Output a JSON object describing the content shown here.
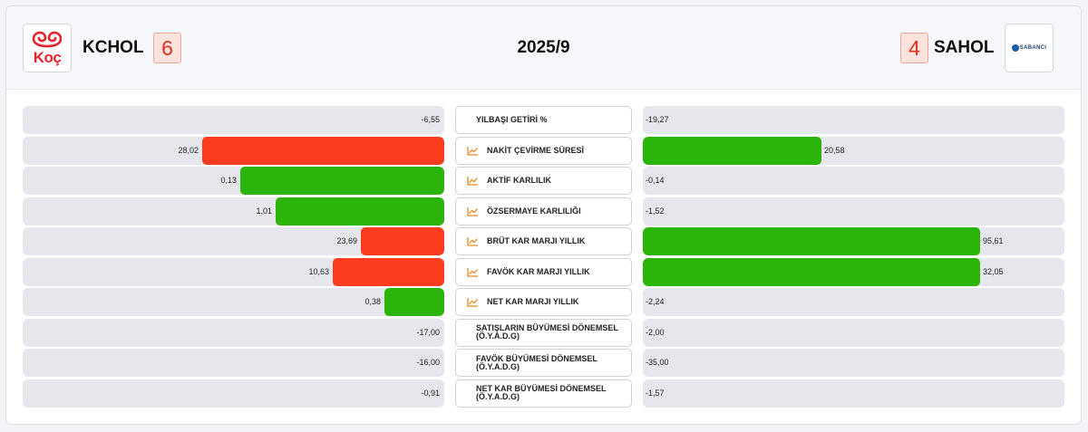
{
  "header": {
    "left": {
      "logo_text": "Koç",
      "ticker": "KCHOL",
      "score": "6"
    },
    "right": {
      "logo_text": "SABANCI",
      "ticker": "SAHOL",
      "score": "4"
    },
    "period": "2025/9"
  },
  "colors": {
    "good": "#2bb40a",
    "bad": "#fc3c1f",
    "track": "#e6e7ec"
  },
  "metrics": [
    {
      "label": "YILBAŞI GETİRİ %",
      "icon": "",
      "left": {
        "value": "-6,55",
        "fill": 0,
        "color": ""
      },
      "right": {
        "value": "-19,27",
        "fill": 0,
        "color": ""
      }
    },
    {
      "label": "NAKİT ÇEVİRME SÜRESİ",
      "icon": "chart-line-icon",
      "left": {
        "value": "28,02",
        "fill": 0.575,
        "color": "bad"
      },
      "right": {
        "value": "20,58",
        "fill": 0.423,
        "color": "good"
      }
    },
    {
      "label": "AKTİF KARLILIK",
      "icon": "chart-line-icon",
      "left": {
        "value": "0,13",
        "fill": 0.483,
        "color": "good"
      },
      "right": {
        "value": "-0,14",
        "fill": 0,
        "color": ""
      }
    },
    {
      "label": "ÖZSERMAYE KARLILIĞI",
      "icon": "chart-line-icon",
      "left": {
        "value": "1,01",
        "fill": 0.4,
        "color": "good"
      },
      "right": {
        "value": "-1,52",
        "fill": 0,
        "color": ""
      }
    },
    {
      "label": "BRÜT KAR MARJI YILLIK",
      "icon": "chart-line-icon",
      "left": {
        "value": "23,69",
        "fill": 0.198,
        "color": "bad"
      },
      "right": {
        "value": "95,61",
        "fill": 0.8,
        "color": "good"
      }
    },
    {
      "label": "FAVÖK KAR MARJI YILLIK",
      "icon": "chart-line-icon",
      "left": {
        "value": "10,63",
        "fill": 0.265,
        "color": "bad"
      },
      "right": {
        "value": "32,05",
        "fill": 0.8,
        "color": "good"
      }
    },
    {
      "label": "NET KAR MARJI YILLIK",
      "icon": "chart-line-icon",
      "left": {
        "value": "0,38",
        "fill": 0.143,
        "color": "good"
      },
      "right": {
        "value": "-2,24",
        "fill": 0,
        "color": ""
      }
    },
    {
      "label": "SATIŞLARIN BÜYÜMESİ DÖNEMSEL (Ö.Y.A.D.G)",
      "icon": "",
      "left": {
        "value": "-17,00",
        "fill": 0,
        "color": ""
      },
      "right": {
        "value": "-2,00",
        "fill": 0,
        "color": ""
      }
    },
    {
      "label": "FAVÖK BÜYÜMESİ DÖNEMSEL (Ö.Y.A.D.G)",
      "icon": "",
      "left": {
        "value": "-16,00",
        "fill": 0,
        "color": ""
      },
      "right": {
        "value": "-35,00",
        "fill": 0,
        "color": ""
      }
    },
    {
      "label": "NET KAR BÜYÜMESİ DÖNEMSEL (Ö.Y.A.D.G)",
      "icon": "",
      "left": {
        "value": "-0,91",
        "fill": 0,
        "color": ""
      },
      "right": {
        "value": "-1,57",
        "fill": 0,
        "color": ""
      }
    }
  ]
}
